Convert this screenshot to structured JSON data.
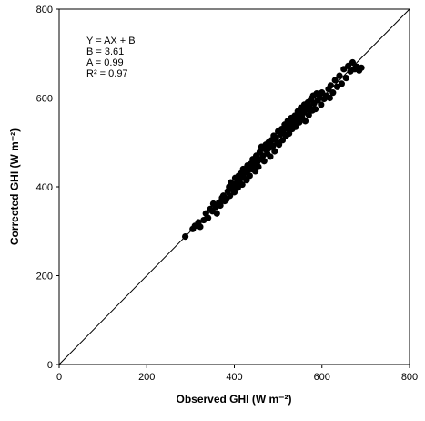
{
  "chart_data": {
    "type": "scatter",
    "x_label": "Observed GHI (W m⁻²)",
    "y_label": "Corrected GHI (W m⁻²)",
    "annotations": [
      "Y = AX + B",
      "B = 3.61",
      "A = 0.99",
      "R² = 0.97"
    ],
    "xlim": [
      0,
      800
    ],
    "ylim": [
      0,
      800
    ],
    "xticks": [
      0,
      200,
      400,
      600,
      800
    ],
    "yticks": [
      0,
      200,
      400,
      600,
      800
    ],
    "color": "#000000",
    "x": [
      288,
      305,
      310,
      318,
      322,
      330,
      335,
      340,
      345,
      350,
      352,
      358,
      360,
      365,
      368,
      372,
      375,
      378,
      382,
      385,
      388,
      390,
      392,
      395,
      398,
      400,
      402,
      405,
      408,
      410,
      412,
      415,
      418,
      420,
      422,
      425,
      428,
      430,
      432,
      435,
      438,
      440,
      442,
      445,
      448,
      450,
      452,
      455,
      458,
      460,
      462,
      465,
      468,
      470,
      472,
      475,
      478,
      480,
      482,
      485,
      488,
      490,
      492,
      495,
      498,
      500,
      502,
      505,
      508,
      510,
      512,
      515,
      518,
      520,
      522,
      525,
      528,
      530,
      532,
      535,
      538,
      540,
      542,
      545,
      548,
      550,
      552,
      555,
      558,
      560,
      562,
      565,
      568,
      570,
      572,
      575,
      578,
      580,
      582,
      585,
      588,
      590,
      595,
      598,
      600,
      605,
      610,
      615,
      618,
      620,
      625,
      630,
      635,
      640,
      645,
      650,
      655,
      660,
      665,
      670,
      675,
      680,
      685,
      690
    ],
    "y": [
      288,
      305,
      312,
      320,
      310,
      325,
      340,
      330,
      350,
      345,
      362,
      355,
      340,
      365,
      358,
      375,
      380,
      368,
      372,
      390,
      400,
      380,
      410,
      395,
      402,
      388,
      420,
      408,
      398,
      425,
      415,
      430,
      405,
      440,
      420,
      432,
      415,
      448,
      438,
      425,
      452,
      440,
      462,
      448,
      435,
      470,
      455,
      445,
      478,
      462,
      490,
      470,
      458,
      485,
      495,
      475,
      500,
      488,
      468,
      505,
      492,
      515,
      480,
      510,
      500,
      525,
      495,
      518,
      530,
      505,
      522,
      540,
      515,
      532,
      548,
      520,
      540,
      555,
      530,
      545,
      560,
      535,
      552,
      570,
      545,
      560,
      578,
      555,
      568,
      585,
      548,
      575,
      590,
      562,
      580,
      598,
      572,
      605,
      588,
      575,
      610,
      595,
      600,
      585,
      612,
      598,
      605,
      620,
      600,
      628,
      612,
      640,
      625,
      650,
      632,
      665,
      645,
      672,
      660,
      680,
      665,
      670,
      662,
      668
    ]
  }
}
